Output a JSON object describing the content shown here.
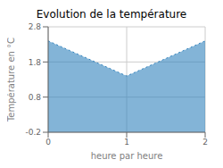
{
  "chart_data": {
    "type": "area",
    "title": "Evolution de la température",
    "xlabel": "heure par heure",
    "ylabel": "Température en °C",
    "x": [
      0,
      1,
      2
    ],
    "values": [
      2.4,
      1.4,
      2.4
    ],
    "xlim": [
      0,
      2
    ],
    "ylim": [
      -0.2,
      2.8
    ],
    "xticks": [
      0,
      1,
      2
    ],
    "yticks": [
      -0.2,
      0.8,
      1.8,
      2.8
    ],
    "grid": true,
    "line_style": "dotted"
  }
}
